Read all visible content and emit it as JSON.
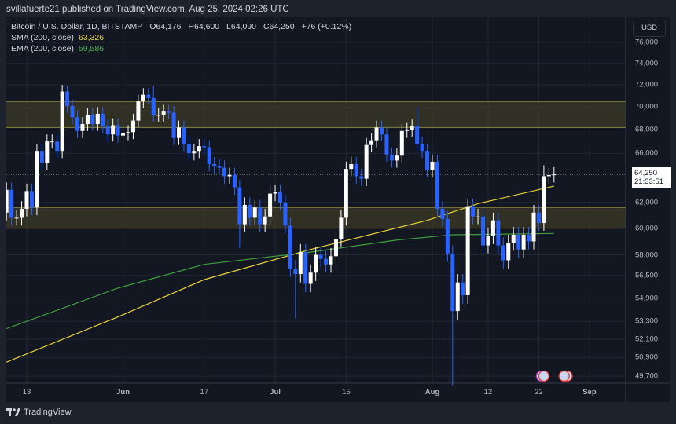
{
  "header": {
    "published": "svillafuerte21 published on TradingView.com, Aug 25, 2024 02:26 UTC"
  },
  "legend": {
    "symbol": "Bitcoin / U.S. Dollar, 1D, BITSTAMP",
    "open": "O64,176",
    "high": "H64,600",
    "low": "L64,090",
    "close": "C64,250",
    "change": "+76 (+0.12%)",
    "sma_label": "SMA (200, close)",
    "sma_value": "63,326",
    "ema_label": "EMA (200, close)",
    "ema_value": "59,586"
  },
  "colors": {
    "up": "#ffffff",
    "down": "#2962ff",
    "sma": "#e8d33a",
    "ema": "#3f9d3f",
    "zone": "#4a4628"
  },
  "price_axis": {
    "currency": "USD",
    "ticks": [
      "76,000",
      "74,000",
      "72,000",
      "70,000",
      "68,000",
      "66,000",
      "62,000",
      "60,000",
      "58,000",
      "56,500",
      "54,900",
      "53,300",
      "52,100",
      "50,900",
      "49,700"
    ],
    "current_price": "64,250",
    "countdown": "21:33:51"
  },
  "time_axis": {
    "labels": [
      "13",
      "Jun",
      "17",
      "Jul",
      "15",
      "Aug",
      "12",
      "22",
      "Sep"
    ]
  },
  "footer": {
    "brand": "TradingView"
  },
  "chart_data": {
    "type": "candlestick",
    "scale": "log",
    "ylim": [
      49700,
      76000
    ],
    "first_date": "2024-05-09",
    "first_open": 61.2,
    "closes_thousands": [
      63.0,
      60.8,
      60.8,
      61.5,
      62.9,
      61.6,
      66.2,
      65.2,
      67.0,
      67.0,
      66.2,
      71.4,
      70.1,
      69.1,
      67.9,
      68.5,
      69.3,
      68.5,
      69.4,
      68.3,
      67.6,
      68.4,
      67.5,
      67.7,
      67.8,
      68.8,
      70.5,
      71.1,
      70.8,
      69.3,
      69.3,
      69.6,
      69.5,
      67.3,
      68.2,
      66.8,
      66.0,
      66.2,
      66.6,
      66.5,
      65.1,
      64.9,
      64.8,
      64.1,
      64.2,
      63.2,
      60.3,
      61.8,
      60.8,
      61.6,
      60.3,
      60.9,
      62.7,
      62.8,
      62.0,
      60.2,
      57.0,
      56.6,
      58.2,
      55.9,
      56.7,
      58.0,
      57.7,
      57.3,
      57.9,
      59.2,
      60.8,
      64.7,
      65.1,
      64.1,
      63.9,
      66.7,
      67.1,
      68.2,
      67.6,
      65.9,
      65.4,
      65.8,
      67.9,
      68.0,
      68.3,
      66.8,
      66.2,
      64.6,
      65.3,
      61.5,
      60.7,
      58.1,
      54.0,
      56.0,
      55.1,
      61.7,
      60.9,
      60.9,
      58.7,
      59.4,
      60.6,
      58.7,
      57.6,
      58.9,
      59.5,
      58.4,
      59.5,
      59.0,
      61.2,
      60.4,
      64.1,
      64.2,
      64.25
    ],
    "notable_wicks": {
      "2024-05-21": {
        "high": 71.9
      },
      "2024-06-07": {
        "high": 71.9
      },
      "2024-07-05": {
        "low": 53.5
      },
      "2024-07-29": {
        "high": 70.0
      },
      "2024-08-05": {
        "low": 49.1
      },
      "2024-08-23": {
        "high": 65.0
      },
      "2024-06-24": {
        "low": 58.5
      }
    },
    "zones": [
      {
        "low": 68200,
        "high": 70500
      },
      {
        "low": 60000,
        "high": 61600
      }
    ],
    "sma200": [
      [
        "2024-05-09",
        50.6
      ],
      [
        "2024-05-31",
        53.6
      ],
      [
        "2024-06-17",
        56.2
      ],
      [
        "2024-07-08",
        58.4
      ],
      [
        "2024-07-31",
        60.6
      ],
      [
        "2024-08-10",
        61.9
      ],
      [
        "2024-08-25",
        63.3
      ]
    ],
    "ema200": [
      [
        "2024-05-09",
        52.8
      ],
      [
        "2024-05-31",
        55.6
      ],
      [
        "2024-06-17",
        57.3
      ],
      [
        "2024-07-08",
        58.2
      ],
      [
        "2024-07-25",
        59.1
      ],
      [
        "2024-08-05",
        59.5
      ],
      [
        "2024-08-25",
        59.6
      ]
    ]
  }
}
